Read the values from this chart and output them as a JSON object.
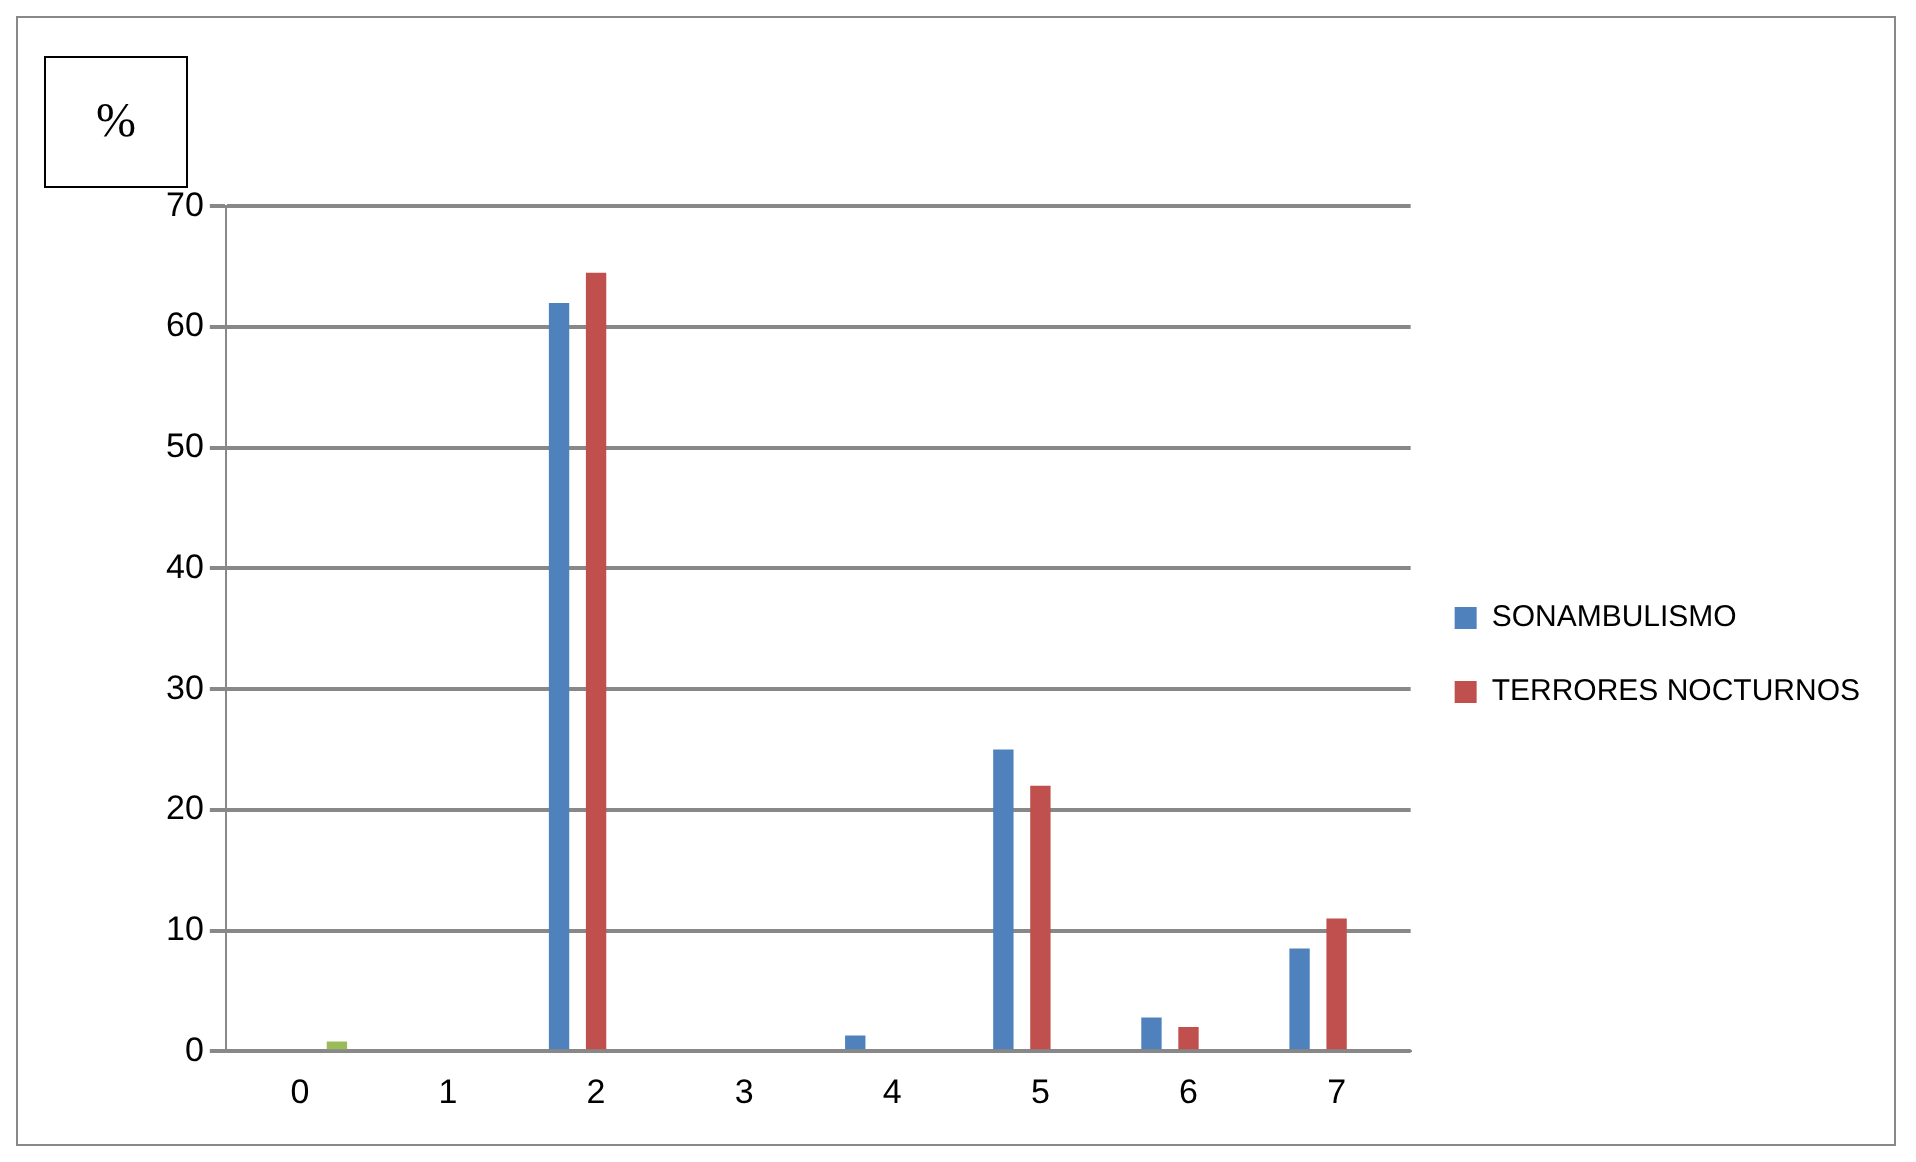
{
  "chart_data": {
    "type": "bar",
    "ylabel": "%",
    "categories": [
      "0",
      "1",
      "2",
      "3",
      "4",
      "5",
      "6",
      "7"
    ],
    "series": [
      {
        "name": "SONAMBULISMO",
        "color": "#4f81bd",
        "values": [
          0,
          0,
          62,
          0,
          1.3,
          25,
          2.8,
          8.5
        ]
      },
      {
        "name": "TERRORES NOCTURNOS",
        "color": "#c0504d",
        "values": [
          0,
          0,
          64.5,
          0,
          0,
          22,
          2,
          11
        ]
      },
      {
        "color": "#9bbb59",
        "values": [
          0.8,
          null,
          null,
          null,
          null,
          null,
          null,
          null
        ]
      }
    ],
    "ylim": [
      0,
      70
    ],
    "yticks": [
      0,
      10,
      20,
      30,
      40,
      50,
      60,
      70
    ],
    "grid": "y",
    "legend": "right"
  }
}
